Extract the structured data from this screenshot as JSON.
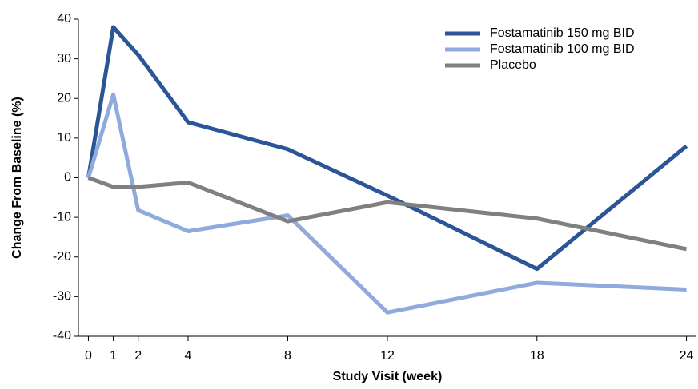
{
  "chart_data": {
    "type": "line",
    "x_label": "Study Visit (week)",
    "y_label": "Change From Baseline (%)",
    "x": [
      0,
      1,
      2,
      4,
      8,
      12,
      18,
      24
    ],
    "series": [
      {
        "name": "Fostamatinib 150 mg BID",
        "color": "#2b5597",
        "values": [
          0,
          38,
          31,
          14,
          7.2,
          -4.5,
          -23,
          8
        ]
      },
      {
        "name": "Fostamatinib 100 mg BID",
        "color": "#8faadc",
        "values": [
          0,
          21,
          -8.2,
          -13.5,
          -9.5,
          -34,
          -26.5,
          -28.2
        ]
      },
      {
        "name": "Placebo",
        "color": "#808080",
        "values": [
          0,
          -2.3,
          -2.3,
          -1.2,
          -11,
          -6.2,
          -10.3,
          -18
        ]
      }
    ],
    "xlim": [
      -0.4,
      24.4
    ],
    "ylim": [
      -40,
      40
    ],
    "xticks": [
      0,
      1,
      2,
      4,
      8,
      12,
      18,
      24
    ],
    "yticks": [
      -40,
      -30,
      -20,
      -10,
      0,
      10,
      20,
      30,
      40
    ],
    "legend": "upper right",
    "grid": false
  }
}
